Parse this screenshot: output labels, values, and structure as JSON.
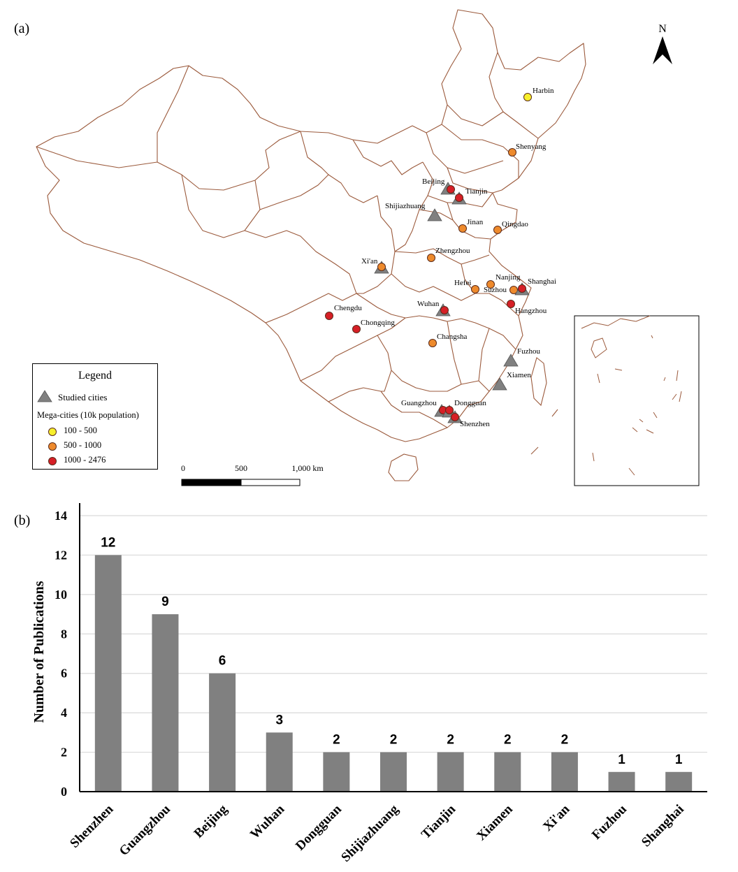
{
  "panel_a_label": "(a)",
  "panel_b_label": "(b)",
  "north": "N",
  "legend": {
    "title": "Legend",
    "studied": "Studied cities",
    "mega_title": "Mega-cities (10k population)",
    "classes": [
      {
        "label": "100 - 500",
        "color": "#f7ef2c"
      },
      {
        "label": "500 - 1000",
        "color": "#ee8a2c"
      },
      {
        "label": "1000 - 2476",
        "color": "#d61f26"
      }
    ]
  },
  "scalebar": {
    "t0": "0",
    "t1": "500",
    "t2": "1,000  km"
  },
  "cities": [
    {
      "name": "Harbin",
      "cls": 0
    },
    {
      "name": "Shenyang",
      "cls": 1
    },
    {
      "name": "Beijing",
      "cls": 2,
      "studied": true
    },
    {
      "name": "Tianjin",
      "cls": 2,
      "studied": true
    },
    {
      "name": "Shijiazhuang",
      "studied": true
    },
    {
      "name": "Jinan",
      "cls": 1
    },
    {
      "name": "Qingdao",
      "cls": 1
    },
    {
      "name": "Zhengzhou",
      "cls": 1
    },
    {
      "name": "Xi'an",
      "cls": 1,
      "studied": true
    },
    {
      "name": "Nanjing",
      "cls": 1
    },
    {
      "name": "Hefei",
      "cls": 1
    },
    {
      "name": "Suzhou",
      "cls": 1
    },
    {
      "name": "Shanghai",
      "cls": 2,
      "studied": true
    },
    {
      "name": "Hangzhou",
      "cls": 2
    },
    {
      "name": "Wuhan",
      "cls": 2,
      "studied": true
    },
    {
      "name": "Chengdu",
      "cls": 2
    },
    {
      "name": "Chongqing",
      "cls": 2
    },
    {
      "name": "Changsha",
      "cls": 1
    },
    {
      "name": "Fuzhou",
      "studied": true
    },
    {
      "name": "Xiamen",
      "studied": true
    },
    {
      "name": "Guangzhou",
      "cls": 2,
      "studied": true
    },
    {
      "name": "Dongguan",
      "cls": 2,
      "studied": true
    },
    {
      "name": "Shenzhen",
      "cls": 2,
      "studied": true
    }
  ],
  "colors": {
    "boundary": "#9b5a3c",
    "bar": "#808080",
    "grid": "#d9d9d9",
    "triangle": "#808080"
  },
  "chart_data": {
    "type": "bar",
    "categories": [
      "Shenzhen",
      "Guangzhou",
      "Beijing",
      "Wuhan",
      "Dongguan",
      "Shijiazhuang",
      "Tianjin",
      "Xiamen",
      "Xi'an",
      "Fuzhou",
      "Shanghai"
    ],
    "values": [
      12,
      9,
      6,
      3,
      2,
      2,
      2,
      2,
      2,
      1,
      1
    ],
    "ylabel": "Number of Publications",
    "ylim": [
      0,
      14
    ],
    "yticks": [
      0,
      2,
      4,
      6,
      8,
      10,
      12,
      14
    ],
    "grid": true
  }
}
